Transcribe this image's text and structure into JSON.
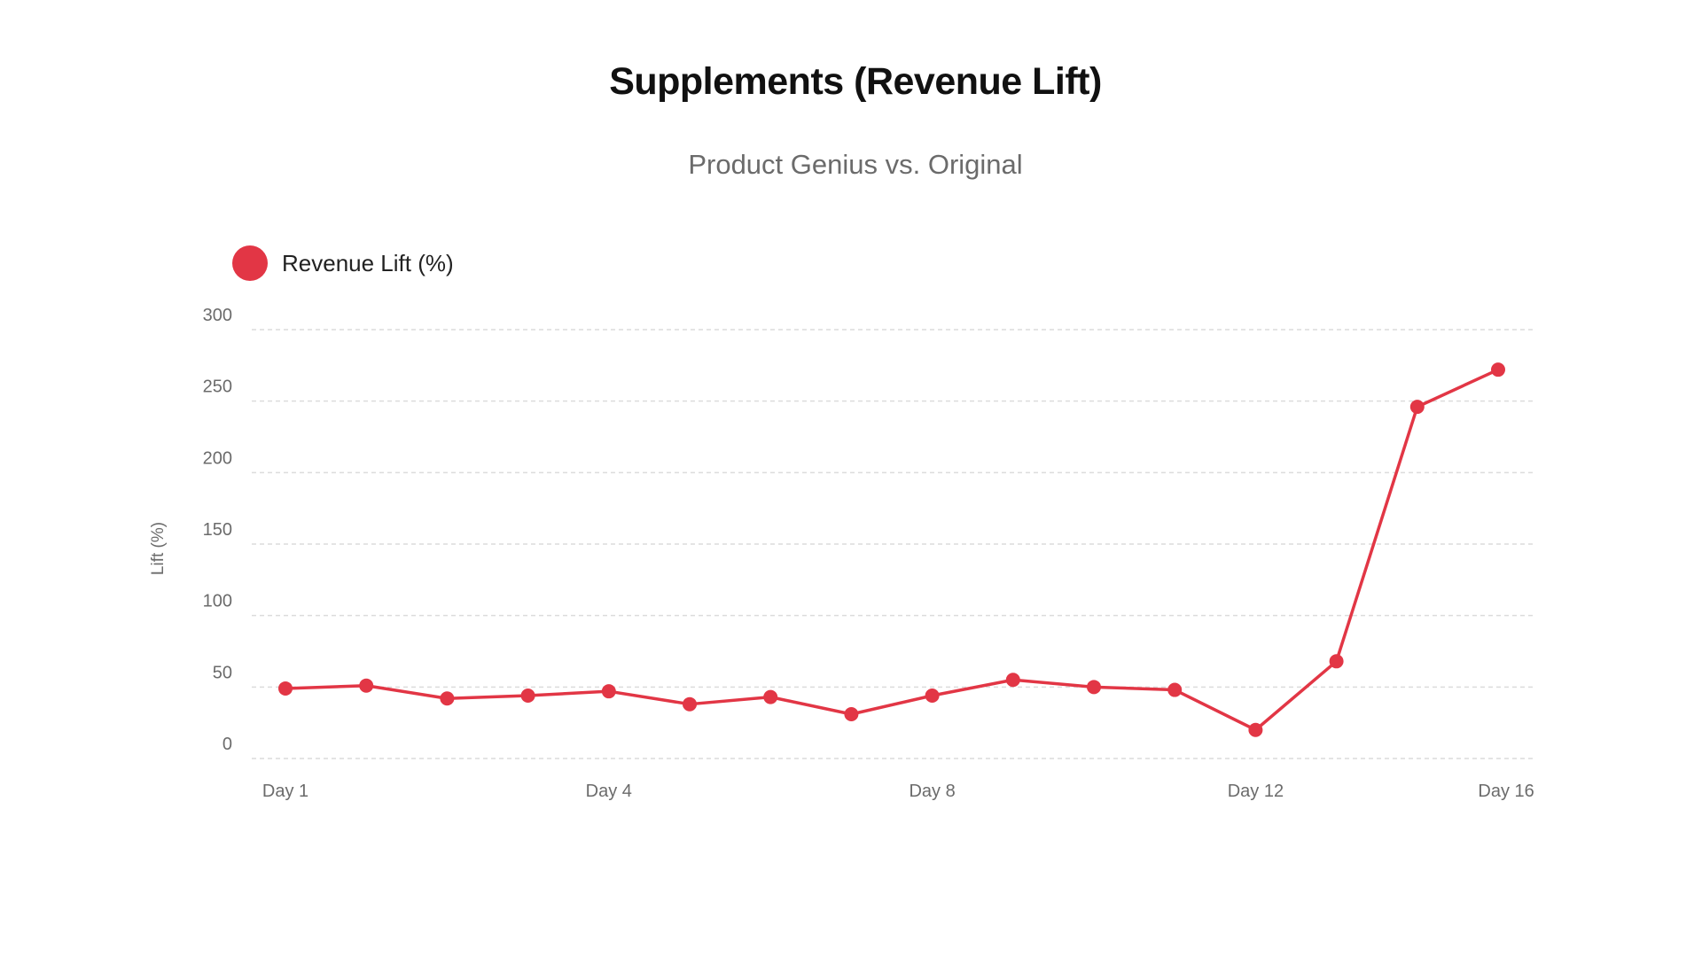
{
  "colors": {
    "series": "#e23645",
    "grid": "#dcdcdc",
    "title": "#111111",
    "muted": "#6b6b6b",
    "background": "#ffffff"
  },
  "chart_data": {
    "type": "line",
    "title": "Supplements (Revenue Lift)",
    "subtitle": "Product Genius vs. Original",
    "xlabel": "",
    "ylabel": "Lift (%)",
    "ylim": [
      0,
      300
    ],
    "yticks": [
      0,
      50,
      100,
      150,
      200,
      250,
      300
    ],
    "grid": true,
    "legend_position": "top-left",
    "x": [
      1,
      2,
      3,
      4,
      5,
      6,
      7,
      8,
      9,
      10,
      11,
      12,
      13,
      14,
      15,
      16
    ],
    "xlim": [
      1,
      16
    ],
    "x_ticks": [
      {
        "x": 1,
        "label": "Day 1"
      },
      {
        "x": 5,
        "label": "Day 4"
      },
      {
        "x": 9,
        "label": "Day 8"
      },
      {
        "x": 13,
        "label": "Day 12"
      },
      {
        "x": 16.1,
        "label": "Day 16"
      }
    ],
    "series": [
      {
        "name": "Revenue Lift (%)",
        "values": [
          49,
          51,
          42,
          44,
          47,
          38,
          43,
          31,
          44,
          55,
          50,
          48,
          20,
          68,
          246,
          272
        ]
      }
    ]
  }
}
